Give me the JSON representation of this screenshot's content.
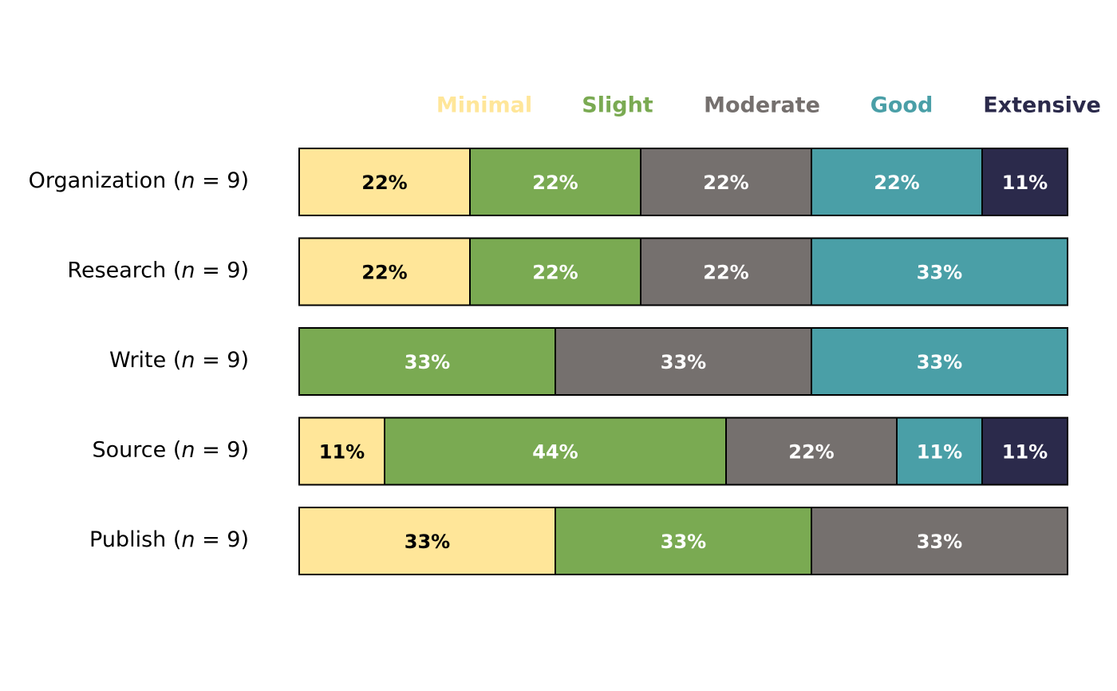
{
  "chart_data": {
    "type": "bar",
    "orientation": "horizontal",
    "stacked": true,
    "normalized": true,
    "legend_position": "top",
    "grid": false,
    "categories": [
      {
        "name": "Organization",
        "n_label": "n",
        "n_value": "9"
      },
      {
        "name": "Research",
        "n_label": "n",
        "n_value": "9"
      },
      {
        "name": "Write",
        "n_label": "n",
        "n_value": "9"
      },
      {
        "name": "Source",
        "n_label": "n",
        "n_value": "9"
      },
      {
        "name": "Publish",
        "n_label": "n",
        "n_value": "9"
      }
    ],
    "series": [
      {
        "name": "Minimal",
        "color": "#FFE699",
        "text_color": "#000000",
        "values": [
          22,
          22,
          0,
          11,
          33
        ],
        "labels": [
          "22%",
          "22%",
          "",
          "11%",
          "33%"
        ]
      },
      {
        "name": "Slight",
        "color": "#7AAA52",
        "text_color": "#FFFFFF",
        "values": [
          22,
          22,
          33,
          44,
          33
        ],
        "labels": [
          "22%",
          "22%",
          "33%",
          "44%",
          "33%"
        ]
      },
      {
        "name": "Moderate",
        "color": "#75706E",
        "text_color": "#FFFFFF",
        "values": [
          22,
          22,
          33,
          22,
          33
        ],
        "labels": [
          "22%",
          "22%",
          "33%",
          "22%",
          "33%"
        ]
      },
      {
        "name": "Good",
        "color": "#4A9FA7",
        "text_color": "#FFFFFF",
        "values": [
          22,
          33,
          33,
          11,
          0
        ],
        "labels": [
          "22%",
          "33%",
          "33%",
          "11%",
          ""
        ]
      },
      {
        "name": "Extensive",
        "color": "#2B2A4B",
        "text_color": "#FFFFFF",
        "values": [
          11,
          0,
          0,
          11,
          0
        ],
        "labels": [
          "11%",
          "",
          "",
          "11%",
          ""
        ]
      }
    ]
  }
}
